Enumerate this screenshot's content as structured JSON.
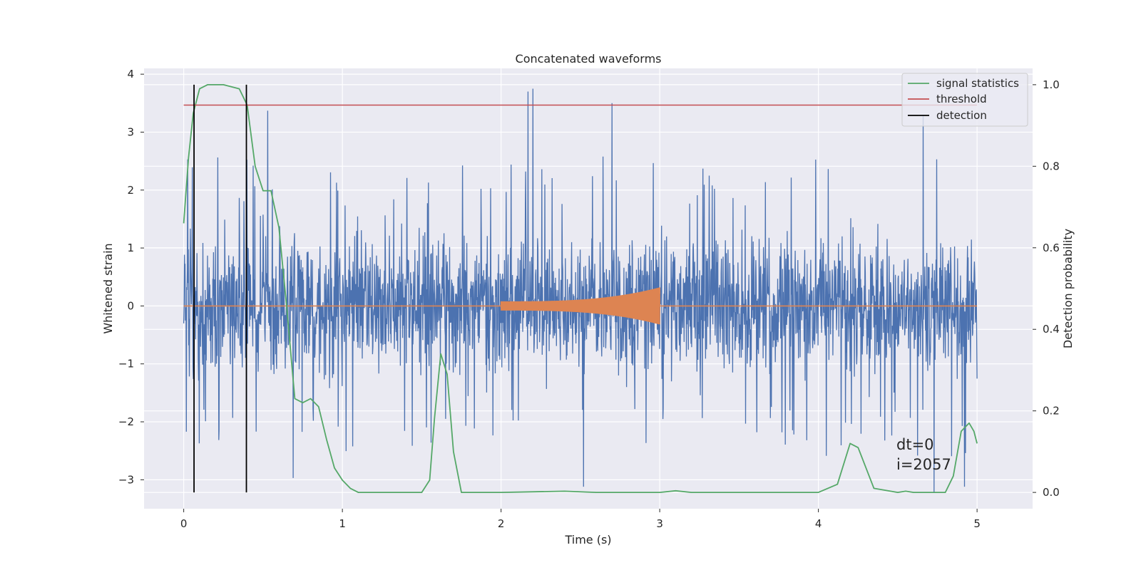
{
  "chart_data": {
    "type": "line",
    "title": "Concatenated waveforms",
    "xlabel": "Time (s)",
    "ylabel": "Whitened strain",
    "y2label": "Detection probability",
    "xlim": [
      -0.25,
      5.35
    ],
    "ylim": [
      -3.5,
      4.1
    ],
    "y2lim": [
      -0.04,
      1.04
    ],
    "x_ticks": [
      0,
      1,
      2,
      3,
      4,
      5
    ],
    "y_ticks": [
      -3,
      -2,
      -1,
      0,
      1,
      2,
      3,
      4
    ],
    "y2_ticks": [
      0.0,
      0.2,
      0.4,
      0.6,
      0.8,
      1.0
    ],
    "x_tick_labels": [
      "0",
      "1",
      "2",
      "3",
      "4",
      "5"
    ],
    "y_tick_labels": [
      "−3",
      "−2",
      "−1",
      "0",
      "1",
      "2",
      "3",
      "4"
    ],
    "y2_tick_labels": [
      "0.0",
      "0.2",
      "0.4",
      "0.6",
      "0.8",
      "1.0"
    ],
    "grid": true,
    "legend_position": "top-right",
    "colors": {
      "noise": "#4c72b0",
      "waveform": "#dd8452",
      "signal_statistics": "#55a868",
      "threshold": "#c44e52",
      "detection": "#000000",
      "background": "#eaeaf2",
      "grid": "#ffffff"
    },
    "series": [
      {
        "name": "signal statistics",
        "axis": "right",
        "x": [
          0,
          0.03,
          0.06,
          0.1,
          0.15,
          0.25,
          0.35,
          0.4,
          0.45,
          0.5,
          0.55,
          0.6,
          0.65,
          0.7,
          0.75,
          0.8,
          0.85,
          0.9,
          0.95,
          1.0,
          1.05,
          1.1,
          1.2,
          1.5,
          1.55,
          1.58,
          1.62,
          1.66,
          1.7,
          1.75,
          1.8,
          2.0,
          2.4,
          2.6,
          3.0,
          3.1,
          3.2,
          4.0,
          4.12,
          4.2,
          4.25,
          4.3,
          4.35,
          4.5,
          4.55,
          4.6,
          4.8,
          4.85,
          4.9,
          4.95,
          4.98,
          5.0
        ],
        "y": [
          0.66,
          0.82,
          0.93,
          0.99,
          1.0,
          1.0,
          0.99,
          0.95,
          0.8,
          0.74,
          0.74,
          0.65,
          0.45,
          0.23,
          0.22,
          0.23,
          0.21,
          0.13,
          0.06,
          0.03,
          0.01,
          0.0,
          0.0,
          0.0,
          0.03,
          0.18,
          0.34,
          0.29,
          0.1,
          0.0,
          0.0,
          0.0,
          0.003,
          0.0,
          0.0,
          0.004,
          0.0,
          0.0,
          0.02,
          0.12,
          0.11,
          0.06,
          0.01,
          0.0,
          0.003,
          0.0,
          0.0,
          0.04,
          0.15,
          0.17,
          0.15,
          0.12
        ]
      },
      {
        "name": "threshold",
        "axis": "right",
        "x": [
          0,
          5
        ],
        "y": [
          0.95,
          0.95
        ]
      },
      {
        "name": "detection",
        "axis": "right",
        "x_positions": [
          0.065,
          0.395
        ],
        "y_range": [
          0.0,
          1.0
        ]
      }
    ],
    "noise": {
      "axis": "left",
      "x_range": [
        0,
        5
      ],
      "typical_range": [
        -2.3,
        2.3
      ],
      "peaks": [
        {
          "x": 2.17,
          "y": 3.7
        },
        {
          "x": 2.2,
          "y": 3.75
        },
        {
          "x": 2.7,
          "y": 3.5
        },
        {
          "x": 4.66,
          "y": 3.3
        },
        {
          "x": 0.53,
          "y": 3.37
        },
        {
          "x": 2.52,
          "y": -3.12
        },
        {
          "x": 4.73,
          "y": -3.22
        },
        {
          "x": 4.92,
          "y": -3.12
        },
        {
          "x": 0.69,
          "y": -2.97
        }
      ]
    },
    "waveform": {
      "axis": "left",
      "x_range": [
        0,
        5
      ],
      "chirp_range": [
        2.0,
        3.0
      ],
      "start_amplitude": 0.08,
      "end_amplitude": 0.32
    },
    "annotations": [
      "dt=0",
      "i=2057"
    ]
  }
}
